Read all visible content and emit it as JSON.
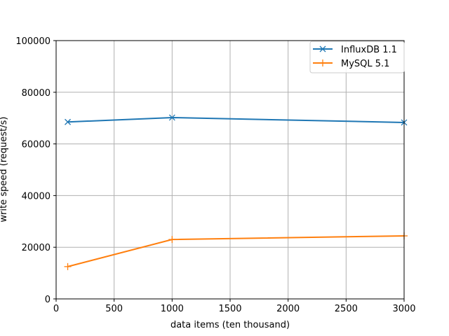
{
  "chart_data": {
    "type": "line",
    "title": "",
    "xlabel": "data items (ten thousand)",
    "ylabel": "write speed (request/s)",
    "xlim": [
      0,
      3000
    ],
    "ylim": [
      0,
      100000
    ],
    "xticks": [
      0,
      500,
      1000,
      1500,
      2000,
      2500,
      3000
    ],
    "yticks": [
      0,
      20000,
      40000,
      60000,
      80000,
      100000
    ],
    "grid": true,
    "legend_position": "upper right",
    "x": [
      100,
      1000,
      3000
    ],
    "series": [
      {
        "name": "InfluxDB 1.1",
        "values": [
          68500,
          70200,
          68300
        ],
        "color": "#1f77b4",
        "marker": "x"
      },
      {
        "name": "MySQL 5.1",
        "values": [
          12500,
          23000,
          24400
        ],
        "color": "#ff7f0e",
        "marker": "+"
      }
    ]
  }
}
